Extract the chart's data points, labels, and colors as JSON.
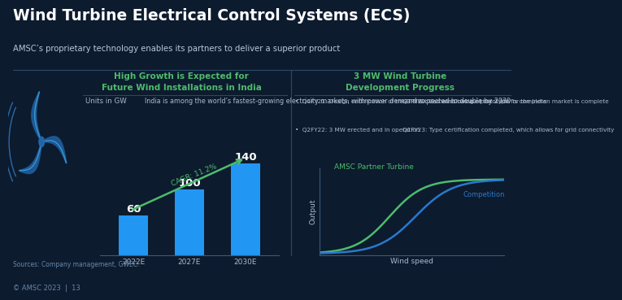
{
  "bg_color": "#0d1b2e",
  "title": "Wind Turbine Electrical Control Systems (ECS)",
  "subtitle": "AMSC’s proprietary technology enables its partners to deliver a superior product",
  "title_color": "#ffffff",
  "subtitle_color": "#b8c8d8",
  "section1_title": "High Growth is Expected for\nFuture Wind Installations in India",
  "section2_title": "3 MW Wind Turbine\nDevelopment Progress",
  "section_title_color": "#4dbb6d",
  "units_label": "Units in GW",
  "units_color": "#aabbcc",
  "section1_desc": "India is among the world’s fastest-growing electricity markets, with power demand expected to double by 2030",
  "desc_color": "#aabbcc",
  "bullet_points_col1": [
    "Q4FY21: Design certification of the 3 MW class wind turbine prototype for the Indian market is complete",
    "Q2FY22: 3 MW erected and in operation"
  ],
  "bullet_points_col2": [
    "Q3FY22: Commissioning of the 3 MW is complete",
    "Q1FY23: Type certification completed, which allows for grid connectivity"
  ],
  "bullet_color": "#aabbcc",
  "bar_years": [
    "2022E",
    "2027E",
    "2030E"
  ],
  "bar_values": [
    60,
    100,
    140
  ],
  "bar_color": "#2196f3",
  "bar_value_color": "#ffffff",
  "cagr_text": "CAGR: 11.2%",
  "cagr_color": "#4dbb6d",
  "chart2_title": "AMSC Partner Turbine",
  "chart2_title_color": "#4dbb6d",
  "competition_label": "Competition",
  "competition_color": "#2979cc",
  "amsc_curve_color": "#4dbb6d",
  "axis_label_color": "#aabbcc",
  "sources_text": "Sources: Company management, GWEC.",
  "sources_color": "#6688aa",
  "footer_text": "© AMSC 2023  |  13",
  "footer_color": "#6688aa",
  "divider_color": "#2a4a6a",
  "spine_color": "#3a5a7a"
}
